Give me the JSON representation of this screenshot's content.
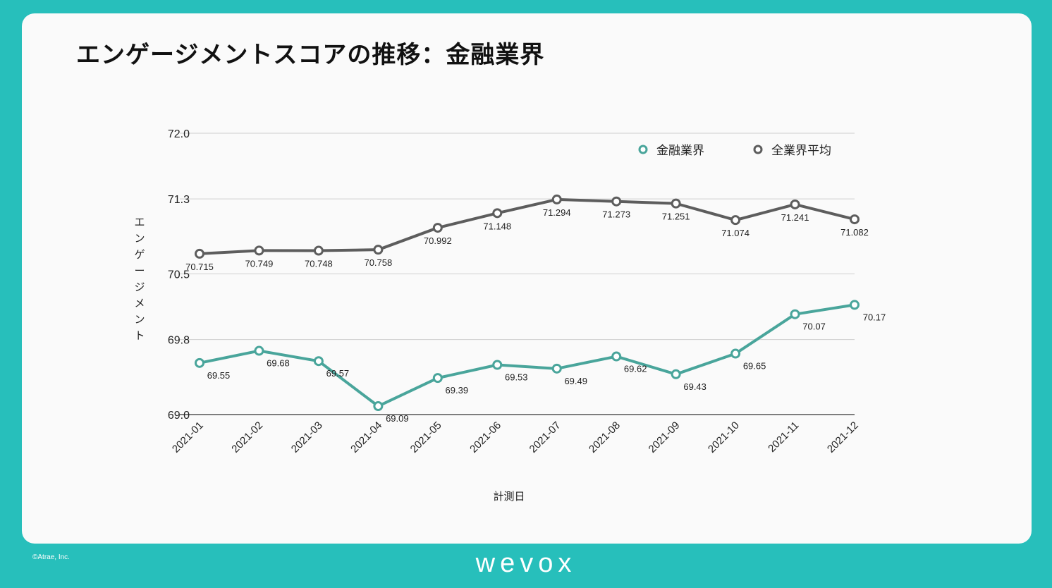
{
  "slide": {
    "title": "エンゲージメントスコアの推移：金融業界",
    "copyright": "©Atrae, Inc.",
    "brand": "wevox"
  },
  "colors": {
    "background": "#27bfbb",
    "card": "#fafafa",
    "finance": "#49a59b",
    "overall": "#5d5d5d"
  },
  "chart_data": {
    "type": "line",
    "title": "",
    "xlabel": "計測日",
    "ylabel": "エンゲージメント",
    "ylim": [
      69.0,
      72.0
    ],
    "yticks": [
      69.0,
      69.8,
      70.5,
      71.3,
      72.0
    ],
    "ytick_labels": [
      "69.0",
      "69.8",
      "70.5",
      "71.3",
      "72.0"
    ],
    "legend_position": "top-right",
    "categories": [
      "2021-01",
      "2021-02",
      "2021-03",
      "2021-04",
      "2021-05",
      "2021-06",
      "2021-07",
      "2021-08",
      "2021-09",
      "2021-10",
      "2021-11",
      "2021-12"
    ],
    "series": [
      {
        "name": "金融業界",
        "color": "#49a59b",
        "values": [
          69.55,
          69.68,
          69.57,
          69.09,
          69.39,
          69.53,
          69.49,
          69.62,
          69.43,
          69.65,
          70.07,
          70.17
        ],
        "labels": [
          "69.55",
          "69.68",
          "69.57",
          "69.09",
          "69.39",
          "69.53",
          "69.49",
          "69.62",
          "69.43",
          "69.65",
          "70.07",
          "70.17"
        ]
      },
      {
        "name": "全業界平均",
        "color": "#5d5d5d",
        "values": [
          70.715,
          70.749,
          70.748,
          70.758,
          70.992,
          71.148,
          71.294,
          71.273,
          71.251,
          71.074,
          71.241,
          71.082
        ],
        "labels": [
          "70.715",
          "70.749",
          "70.748",
          "70.758",
          "70.992",
          "71.148",
          "71.294",
          "71.273",
          "71.251",
          "71.074",
          "71.241",
          "71.082"
        ]
      }
    ]
  }
}
